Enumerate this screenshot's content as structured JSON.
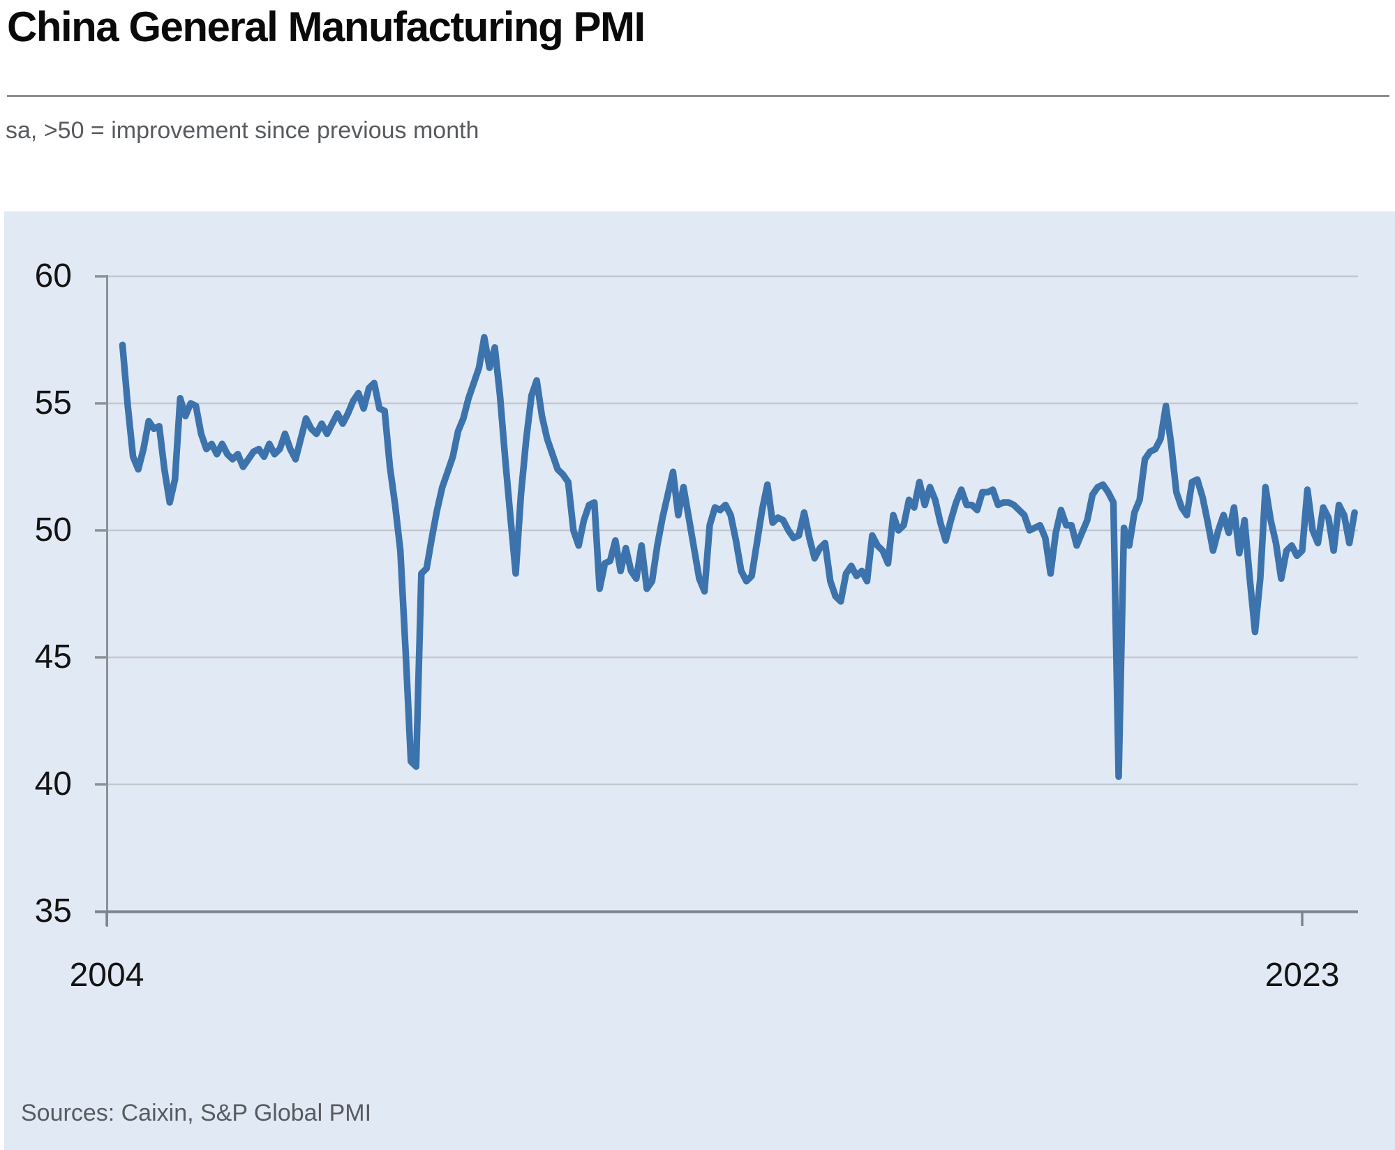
{
  "header": {
    "title": "China General Manufacturing PMI",
    "subtitle": "sa, >50 = improvement since previous month"
  },
  "axes": {
    "y_labels": [
      "60",
      "55",
      "50",
      "45",
      "40",
      "35"
    ],
    "x_labels": [
      "2004",
      "2023"
    ]
  },
  "footer": {
    "source": "Sources: Caixin, S&P Global PMI"
  },
  "chart_data": {
    "type": "line",
    "title": "China General Manufacturing PMI",
    "subtitle": "sa, >50 = improvement since previous month",
    "series_name": "China General Manufacturing PMI (sa)",
    "frequency": "monthly",
    "x_start": "2004-04",
    "x_end": "2023-11",
    "x_tick_labels": [
      "2004",
      "2023"
    ],
    "ylim": [
      35,
      60
    ],
    "y_ticks": [
      35,
      40,
      45,
      50,
      55,
      60
    ],
    "grid": true,
    "legend": false,
    "line_color": "#3c73ac",
    "plot_bg": "#e1e9f4",
    "values": [
      57.3,
      54.9,
      52.9,
      52.4,
      53.2,
      54.3,
      54.0,
      54.1,
      52.4,
      51.1,
      52.0,
      55.2,
      54.5,
      55.0,
      54.9,
      53.8,
      53.2,
      53.4,
      53.0,
      53.4,
      53.0,
      52.8,
      53.0,
      52.5,
      52.8,
      53.1,
      53.2,
      52.9,
      53.4,
      53.0,
      53.2,
      53.8,
      53.2,
      52.8,
      53.6,
      54.4,
      54.0,
      53.8,
      54.2,
      53.8,
      54.2,
      54.6,
      54.2,
      54.6,
      55.1,
      55.4,
      54.8,
      55.6,
      55.8,
      54.8,
      54.7,
      52.5,
      51.0,
      49.2,
      45.2,
      40.9,
      40.7,
      48.3,
      48.5,
      49.7,
      50.8,
      51.7,
      52.3,
      52.9,
      53.9,
      54.4,
      55.2,
      55.8,
      56.4,
      57.6,
      56.4,
      57.2,
      55.3,
      52.8,
      50.5,
      48.3,
      51.4,
      53.6,
      55.3,
      55.9,
      54.5,
      53.6,
      53.0,
      52.4,
      52.2,
      51.9,
      50.0,
      49.4,
      50.4,
      51.0,
      51.1,
      47.7,
      48.7,
      48.8,
      49.6,
      48.4,
      49.3,
      48.4,
      48.1,
      49.4,
      47.7,
      48.0,
      49.4,
      50.5,
      51.4,
      52.3,
      50.6,
      51.7,
      50.5,
      49.3,
      48.1,
      47.6,
      50.2,
      50.9,
      50.8,
      51.0,
      50.6,
      49.6,
      48.4,
      48.0,
      48.2,
      49.5,
      50.8,
      51.8,
      50.3,
      50.5,
      50.4,
      50.0,
      49.7,
      49.8,
      50.7,
      49.7,
      48.9,
      49.3,
      49.5,
      48.0,
      47.4,
      47.2,
      48.3,
      48.6,
      48.2,
      48.4,
      48.0,
      49.8,
      49.4,
      49.2,
      48.7,
      50.6,
      50.0,
      50.2,
      51.2,
      50.9,
      51.9,
      51.0,
      51.7,
      51.2,
      50.3,
      49.6,
      50.4,
      51.1,
      51.6,
      51.0,
      51.0,
      50.8,
      51.5,
      51.5,
      51.6,
      51.0,
      51.1,
      51.1,
      51.0,
      50.8,
      50.6,
      50.0,
      50.1,
      50.2,
      49.7,
      48.3,
      49.9,
      50.8,
      50.2,
      50.2,
      49.4,
      49.9,
      50.4,
      51.4,
      51.7,
      51.8,
      51.5,
      51.1,
      40.3,
      50.1,
      49.4,
      50.7,
      51.2,
      52.8,
      53.1,
      53.2,
      53.6,
      54.9,
      53.4,
      51.5,
      50.9,
      50.6,
      51.9,
      52.0,
      51.3,
      50.3,
      49.2,
      50.0,
      50.6,
      49.9,
      50.9,
      49.1,
      50.4,
      48.1,
      46.0,
      48.1,
      51.7,
      50.4,
      49.5,
      48.1,
      49.2,
      49.4,
      49.0,
      49.2,
      51.6,
      50.0,
      49.5,
      50.9,
      50.5,
      49.2,
      51.0,
      50.6,
      49.5,
      50.7
    ]
  }
}
